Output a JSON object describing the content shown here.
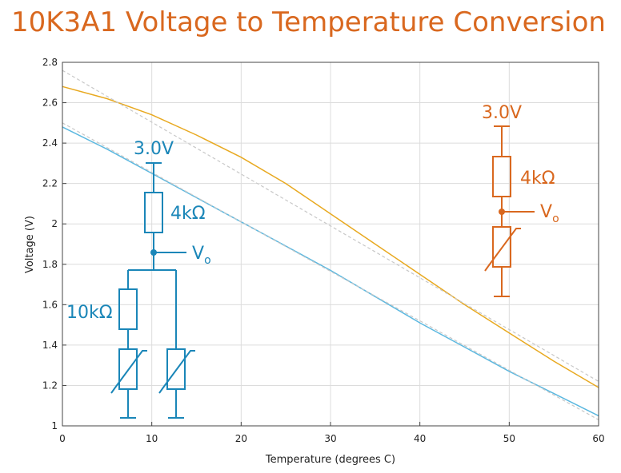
{
  "page": {
    "title": "10K3A1 Voltage to Temperature Conversion"
  },
  "chart_data": {
    "type": "line",
    "title": "10K3A1 Voltage to Temperature Conversion",
    "xlabel": "Temperature (degrees C)",
    "ylabel": "Voltage (V)",
    "xlim": [
      0,
      60
    ],
    "ylim": [
      1,
      2.8
    ],
    "xticks": [
      0,
      10,
      20,
      30,
      40,
      50,
      60
    ],
    "yticks": [
      1,
      1.2,
      1.4,
      1.6,
      1.8,
      2,
      2.2,
      2.4,
      2.6,
      2.8
    ],
    "ytick_labels": [
      "1",
      "1.2",
      "1.4",
      "1.6",
      "1.8",
      "2",
      "2.2",
      "2.4",
      "2.6",
      "2.8"
    ],
    "grid": true,
    "series": [
      {
        "color": "#e8a920",
        "style": "solid",
        "x": [
          0,
          5,
          10,
          15,
          20,
          25,
          30,
          35,
          40,
          45,
          50,
          55,
          60
        ],
        "y": [
          2.68,
          2.62,
          2.54,
          2.44,
          2.33,
          2.2,
          2.05,
          1.9,
          1.75,
          1.6,
          1.46,
          1.32,
          1.19
        ]
      },
      {
        "color": "#c8c8c8",
        "style": "dashed",
        "x": [
          0,
          60
        ],
        "y": [
          2.76,
          1.22
        ]
      },
      {
        "color": "#5bb8e0",
        "style": "solid",
        "x": [
          0,
          5,
          10,
          15,
          20,
          25,
          30,
          35,
          40,
          45,
          50,
          55,
          60
        ],
        "y": [
          2.48,
          2.37,
          2.25,
          2.13,
          2.01,
          1.89,
          1.77,
          1.64,
          1.51,
          1.39,
          1.27,
          1.16,
          1.05
        ]
      },
      {
        "color": "#c8c8c8",
        "style": "dashed",
        "x": [
          0,
          60
        ],
        "y": [
          2.5,
          1.03
        ]
      }
    ],
    "annotations": {
      "right_circuit": {
        "supply": "3.0V",
        "resistor": "4kΩ",
        "output": "V",
        "output_sub": "o",
        "color": "#d9681f"
      },
      "left_circuit": {
        "supply": "3.0V",
        "resistor": "4kΩ",
        "output": "V",
        "output_sub": "o",
        "parallel_resistor": "10kΩ",
        "color": "#1a86b8"
      }
    }
  }
}
